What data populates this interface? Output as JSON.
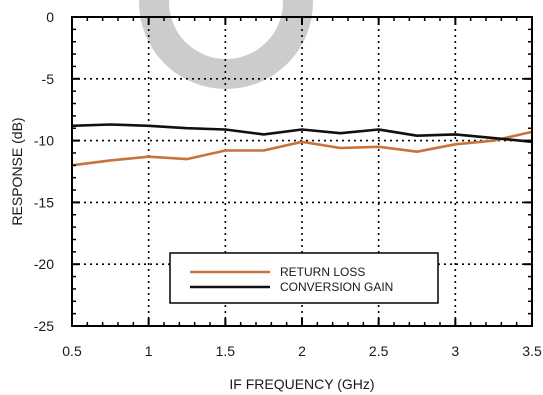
{
  "chart_data": {
    "type": "line",
    "xlabel": "IF FREQUENCY (GHz)",
    "ylabel": "RESPONSE (dB)",
    "xlim": [
      0.5,
      3.5
    ],
    "ylim": [
      -25,
      0
    ],
    "xticks": [
      0.5,
      1,
      1.5,
      2,
      2.5,
      3,
      3.5
    ],
    "xtick_labels": [
      "0.5",
      "1",
      "1.5",
      "2",
      "2.5",
      "3",
      "3.5"
    ],
    "yticks": [
      0,
      -5,
      -10,
      -15,
      -20,
      -25
    ],
    "ytick_labels": [
      "0",
      "-5",
      "-10",
      "-15",
      "-20",
      "-25"
    ],
    "grid": true,
    "grid_style": "dotted",
    "legend_position": "bottom-center",
    "x": [
      0.5,
      0.75,
      1.0,
      1.25,
      1.5,
      1.75,
      2.0,
      2.25,
      2.5,
      2.75,
      3.0,
      3.25,
      3.5
    ],
    "series": [
      {
        "name": "RETURN LOSS",
        "color": "#c8733a",
        "values": [
          -12.0,
          -11.6,
          -11.3,
          -11.5,
          -10.8,
          -10.8,
          -10.1,
          -10.6,
          -10.5,
          -10.9,
          -10.3,
          -10.0,
          -9.3
        ]
      },
      {
        "name": "CONVERSION GAIN",
        "color": "#111111",
        "values": [
          -8.8,
          -8.7,
          -8.8,
          -9.0,
          -9.1,
          -9.5,
          -9.1,
          -9.4,
          -9.1,
          -9.6,
          -9.5,
          -9.8,
          -10.1
        ]
      }
    ]
  },
  "colors": {
    "watermark": "#cccccc",
    "axis": "#000000",
    "grid": "#000000"
  }
}
